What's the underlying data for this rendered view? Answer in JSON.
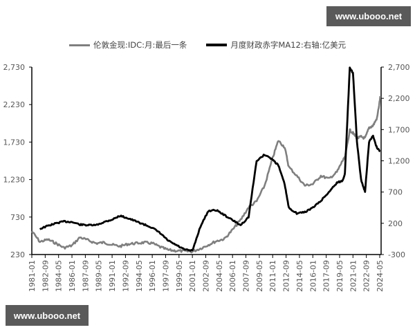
{
  "watermarks": {
    "top": "www.ubooo.net",
    "bottom": "www.ubooo.net"
  },
  "chart_data": {
    "type": "line",
    "title": "",
    "legend": [
      {
        "name": "伦敦金现:IDC:月:最后一条",
        "color": "#7f7f7f",
        "axis": "left"
      },
      {
        "name": "月度财政赤字MA12:右轴:亿美元",
        "color": "#000000",
        "axis": "right"
      }
    ],
    "legend_position": "top",
    "grid": false,
    "xlabel": "",
    "ylabel_left": "",
    "ylabel_right": "",
    "x_ticks": [
      "1981-01",
      "1982-09",
      "1984-05",
      "1986-01",
      "1987-09",
      "1989-05",
      "1991-01",
      "1992-09",
      "1994-05",
      "1996-01",
      "1997-09",
      "1999-05",
      "2001-01",
      "2002-09",
      "2004-05",
      "2006-01",
      "2007-09",
      "2009-05",
      "2011-01",
      "2012-09",
      "2014-05",
      "2016-01",
      "2017-09",
      "2019-05",
      "2021-01",
      "2022-09",
      "2024-05"
    ],
    "y_left": {
      "ticks": [
        "230",
        "730",
        "1,230",
        "1,730",
        "2,230",
        "2,730"
      ],
      "range": [
        230,
        2730
      ]
    },
    "y_right": {
      "ticks": [
        "-300",
        "200",
        "700",
        "1,200",
        "1,700",
        "2,200",
        "2,700"
      ],
      "range": [
        -300,
        2700
      ]
    },
    "x": [
      1981.0,
      1982.0,
      1983.0,
      1984.0,
      1985.0,
      1986.0,
      1987.0,
      1988.0,
      1989.0,
      1990.0,
      1991.0,
      1992.0,
      1993.0,
      1994.0,
      1995.0,
      1996.0,
      1997.0,
      1998.0,
      1999.0,
      2000.0,
      2001.0,
      2002.0,
      2003.0,
      2004.0,
      2005.0,
      2006.0,
      2007.0,
      2008.0,
      2009.0,
      2010.0,
      2011.0,
      2011.7,
      2012.5,
      2013.0,
      2014.0,
      2015.0,
      2016.0,
      2017.0,
      2018.0,
      2019.0,
      2019.7,
      2020.0,
      2020.6,
      2021.0,
      2021.5,
      2022.0,
      2022.5,
      2023.0,
      2023.5,
      2024.0,
      2024.4
    ],
    "series": [
      {
        "name": "伦敦金现:IDC:月:最后一条",
        "axis": "left",
        "values": [
          540,
          400,
          430,
          380,
          320,
          350,
          460,
          420,
          380,
          390,
          360,
          340,
          370,
          380,
          390,
          380,
          330,
          290,
          280,
          275,
          270,
          310,
          360,
          410,
          440,
          560,
          690,
          860,
          940,
          1150,
          1520,
          1750,
          1660,
          1400,
          1280,
          1150,
          1170,
          1280,
          1240,
          1330,
          1480,
          1520,
          1890,
          1850,
          1780,
          1800,
          1780,
          1920,
          1950,
          2050,
          2330
        ]
      },
      {
        "name": "月度财政赤字MA12:右轴:亿美元",
        "axis": "right",
        "values": [
          null,
          110,
          160,
          200,
          230,
          220,
          180,
          170,
          170,
          220,
          260,
          320,
          280,
          230,
          180,
          130,
          40,
          -80,
          -150,
          -220,
          -240,
          150,
          400,
          410,
          330,
          250,
          170,
          300,
          1200,
          1300,
          1220,
          1130,
          820,
          450,
          360,
          380,
          450,
          560,
          700,
          850,
          880,
          1000,
          2700,
          2600,
          1500,
          900,
          700,
          1500,
          1600,
          1400,
          1350
        ]
      }
    ]
  }
}
